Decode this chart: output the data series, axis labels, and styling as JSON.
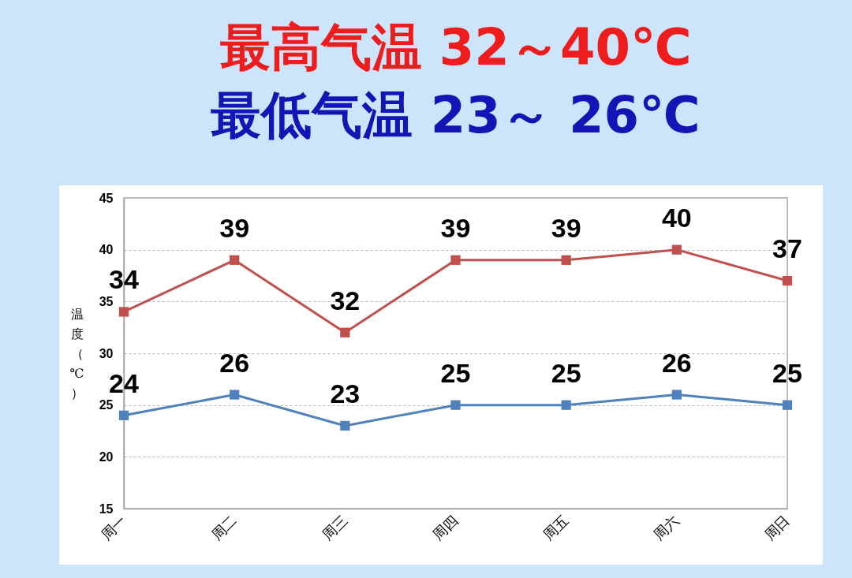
{
  "chart_data": {
    "type": "line",
    "title": "最高气温 32～40℃",
    "subtitle": "最低气温 23～ 26℃",
    "ylabel": "温度（℃）",
    "categories": [
      "周一",
      "周二",
      "周三",
      "周四",
      "周五",
      "周六",
      "周日"
    ],
    "series": [
      {
        "color": "#c0504d",
        "values": [
          34,
          39,
          32,
          39,
          39,
          40,
          37
        ]
      },
      {
        "color": "#4f81bd",
        "values": [
          24,
          26,
          23,
          25,
          25,
          26,
          25
        ]
      }
    ],
    "ylim": [
      15,
      45
    ],
    "yticks": [
      15,
      20,
      25,
      30,
      35,
      40,
      45
    ],
    "grid": "y",
    "marker": "square",
    "line_style": "solid",
    "data_labels": true
  }
}
